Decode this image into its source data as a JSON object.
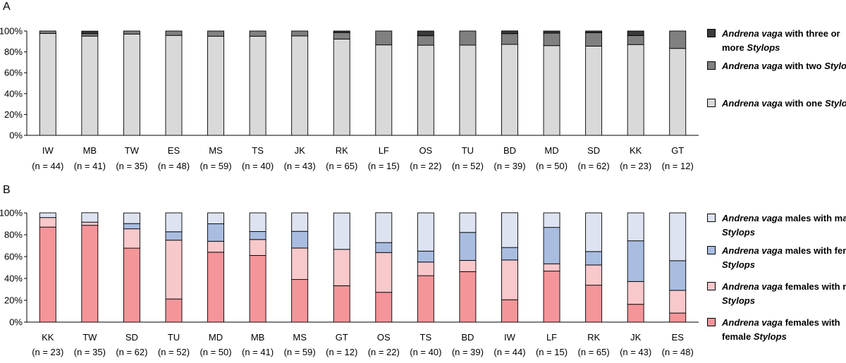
{
  "panels": [
    {
      "panel_label": "A",
      "legend": [
        {
          "parts": [
            {
              "t": "Andrena vaga",
              "i": true
            },
            {
              "t": " with three or more ",
              "i": false
            },
            {
              "t": "Stylops",
              "i": true
            }
          ],
          "color": "#3a3a3a"
        },
        {
          "parts": [
            {
              "t": "Andrena vaga",
              "i": true
            },
            {
              "t": " with two ",
              "i": false
            },
            {
              "t": "Stylops",
              "i": true
            }
          ],
          "color": "#808080"
        },
        {
          "parts": [
            {
              "t": "Andrena vaga",
              "i": true
            },
            {
              "t": " with one ",
              "i": false
            },
            {
              "t": "Stylops",
              "i": true
            }
          ],
          "color": "#d9d9d9"
        }
      ]
    },
    {
      "panel_label": "B",
      "legend": [
        {
          "parts": [
            {
              "t": "Andrena vaga",
              "i": true
            },
            {
              "t": " males with male ",
              "i": false
            },
            {
              "t": "Stylops",
              "i": true
            }
          ],
          "color": "#dde3f1"
        },
        {
          "parts": [
            {
              "t": "Andrena vaga",
              "i": true
            },
            {
              "t": " males with female ",
              "i": false
            },
            {
              "t": "Stylops",
              "i": true
            }
          ],
          "color": "#a9bde1"
        },
        {
          "parts": [
            {
              "t": "Andrena vaga",
              "i": true
            },
            {
              "t": " females with male ",
              "i": false
            },
            {
              "t": "Stylops",
              "i": true
            }
          ],
          "color": "#f9c8cb"
        },
        {
          "parts": [
            {
              "t": "Andrena vaga",
              "i": true
            },
            {
              "t": " females with female ",
              "i": false
            },
            {
              "t": "Stylops",
              "i": true
            }
          ],
          "color": "#f4959a"
        }
      ]
    }
  ],
  "chart_data": [
    {
      "type": "bar",
      "stacked": true,
      "panel": "A",
      "ylim": [
        0,
        100
      ],
      "yticks": [
        "0%",
        "20%",
        "40%",
        "60%",
        "80%",
        "100%"
      ],
      "categories": [
        "IW",
        "MB",
        "TW",
        "ES",
        "MS",
        "TS",
        "JK",
        "RK",
        "LF",
        "OS",
        "TU",
        "BD",
        "MD",
        "SD",
        "KK",
        "GT"
      ],
      "sample_sizes": [
        "(n = 44)",
        "(n = 41)",
        "(n = 35)",
        "(n = 48)",
        "(n = 59)",
        "(n = 40)",
        "(n = 43)",
        "(n = 65)",
        "(n = 15)",
        "(n = 22)",
        "(n = 52)",
        "(n = 39)",
        "(n = 50)",
        "(n = 62)",
        "(n = 23)",
        "(n = 12)"
      ],
      "series": [
        {
          "name": "Andrena vaga with one Stylops",
          "color": "#d9d9d9",
          "values": [
            97.7,
            95.1,
            97.1,
            95.8,
            94.9,
            95.0,
            95.3,
            92.3,
            86.7,
            86.4,
            86.5,
            87.2,
            86.0,
            85.5,
            87.0,
            83.3
          ]
        },
        {
          "name": "Andrena vaga with two Stylops",
          "color": "#808080",
          "values": [
            2.3,
            2.4,
            2.9,
            4.2,
            5.1,
            5.0,
            4.7,
            6.2,
            13.3,
            9.1,
            13.5,
            10.3,
            12.0,
            12.9,
            8.7,
            16.7
          ]
        },
        {
          "name": "Andrena vaga with three or more Stylops",
          "color": "#3a3a3a",
          "values": [
            0,
            2.4,
            0,
            0,
            0,
            0,
            0,
            1.5,
            0,
            4.5,
            0,
            2.6,
            2.0,
            1.6,
            4.3,
            0
          ]
        }
      ]
    },
    {
      "type": "bar",
      "stacked": true,
      "panel": "B",
      "ylim": [
        0,
        100
      ],
      "yticks": [
        "0%",
        "20%",
        "40%",
        "60%",
        "80%",
        "100%"
      ],
      "categories": [
        "KK",
        "TW",
        "SD",
        "TU",
        "MD",
        "MB",
        "MS",
        "GT",
        "OS",
        "TS",
        "BD",
        "IW",
        "LF",
        "RK",
        "JK",
        "ES"
      ],
      "sample_sizes": [
        "(n = 23)",
        "(n = 35)",
        "(n = 62)",
        "(n = 52)",
        "(n = 50)",
        "(n = 41)",
        "(n = 59)",
        "(n = 12)",
        "(n = 22)",
        "(n = 40)",
        "(n = 39)",
        "(n = 44)",
        "(n = 15)",
        "(n = 65)",
        "(n = 43)",
        "(n = 48)"
      ],
      "series": [
        {
          "name": "Andrena vaga females with female Stylops",
          "color": "#f4959a",
          "values": [
            87.0,
            88.6,
            67.7,
            21.2,
            64.0,
            61.0,
            39.0,
            33.3,
            27.3,
            42.5,
            46.2,
            20.5,
            46.7,
            33.8,
            16.3,
            8.3
          ]
        },
        {
          "name": "Andrena vaga females with male Stylops",
          "color": "#f9c8cb",
          "values": [
            8.7,
            2.9,
            17.7,
            53.8,
            10.0,
            14.6,
            28.8,
            33.3,
            36.4,
            12.5,
            10.3,
            36.4,
            6.7,
            18.5,
            20.9,
            20.8
          ]
        },
        {
          "name": "Andrena vaga males with female Stylops",
          "color": "#a9bde1",
          "values": [
            0,
            0,
            4.8,
            7.7,
            16.0,
            7.3,
            15.3,
            0,
            9.1,
            10.0,
            25.6,
            11.4,
            33.3,
            12.3,
            37.2,
            27.1
          ]
        },
        {
          "name": "Andrena vaga males with male Stylops",
          "color": "#dde3f1",
          "values": [
            4.3,
            8.6,
            9.7,
            17.3,
            10.0,
            17.1,
            16.9,
            33.3,
            27.3,
            35.0,
            17.9,
            31.8,
            13.3,
            35.4,
            25.6,
            43.8
          ]
        }
      ]
    }
  ]
}
